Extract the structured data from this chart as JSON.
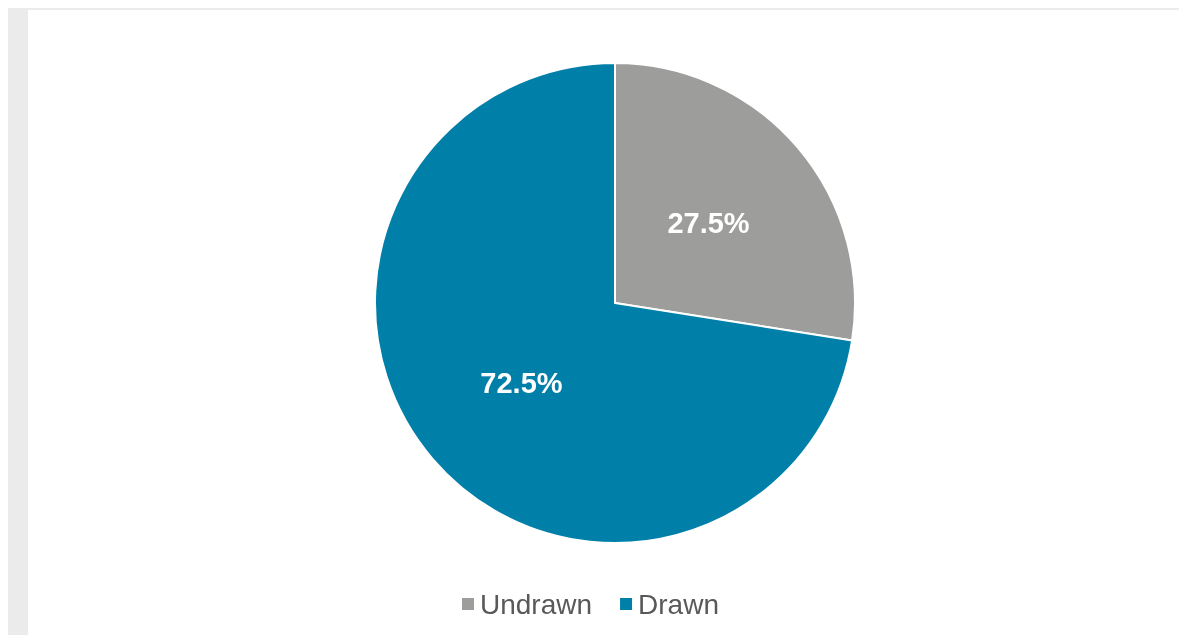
{
  "chart_data": {
    "type": "pie",
    "categories": [
      "Undrawn",
      "Drawn"
    ],
    "values": [
      27.5,
      72.5
    ],
    "colors": [
      "#9d9d9c",
      "#007fa8"
    ],
    "value_labels": [
      "27.5%",
      "72.5%"
    ],
    "legend": "bottom"
  }
}
